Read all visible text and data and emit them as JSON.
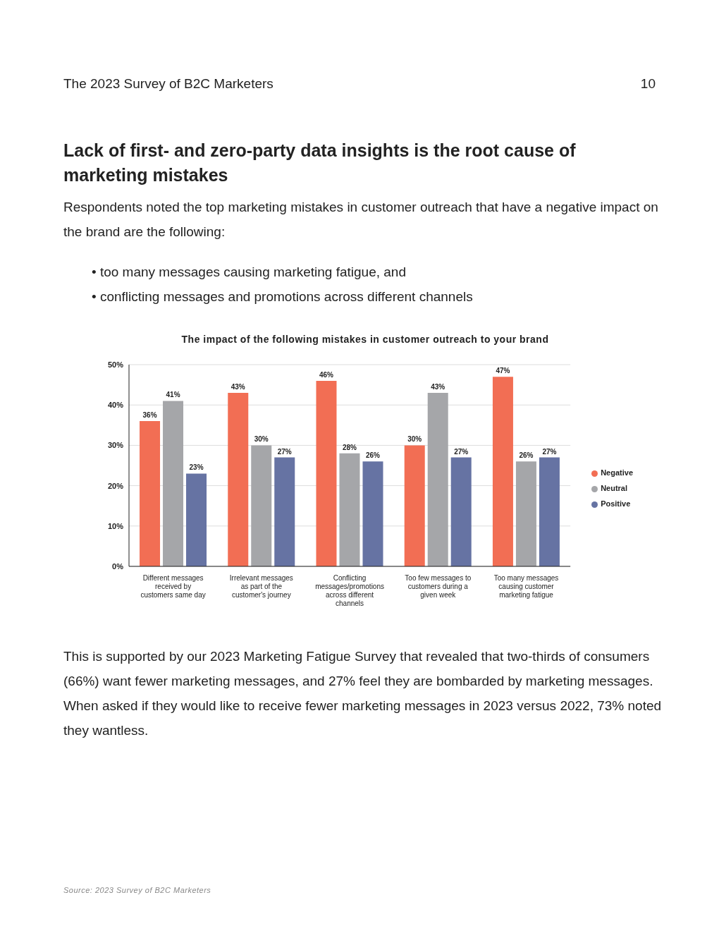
{
  "chart_data": {
    "type": "bar",
    "title": "The impact of the following mistakes in customer outreach to your brand",
    "categories": [
      "Different messages received by customers same day",
      "Irrelevant messages as part of the customer's journey",
      "Conflicting messages/promotions across different channels",
      "Too few messages to customers during a given week",
      "Too many messages causing customer marketing fatigue"
    ],
    "series": [
      {
        "name": "Negative",
        "color": "#f26e54",
        "values": [
          36,
          43,
          46,
          30,
          47
        ]
      },
      {
        "name": "Neutral",
        "color": "#a5a6a9",
        "values": [
          41,
          30,
          28,
          43,
          26
        ]
      },
      {
        "name": "Positive",
        "color": "#6673a3",
        "values": [
          23,
          27,
          26,
          27,
          27
        ]
      }
    ],
    "ylim": [
      0,
      50
    ],
    "yticks": [
      {
        "value": 0,
        "label": "0%"
      },
      {
        "value": 10,
        "label": "10%"
      },
      {
        "value": 20,
        "label": "20%"
      },
      {
        "value": 30,
        "label": "30%"
      },
      {
        "value": 40,
        "label": "40%"
      },
      {
        "value": 50,
        "label": "50%"
      }
    ],
    "value_labels": [
      [
        "36%",
        "43%",
        "46%",
        "30%",
        "47%"
      ],
      [
        "41%",
        "30%",
        "28%",
        "43%",
        "26%"
      ],
      [
        "23%",
        "27%",
        "26%",
        "27%",
        "27%"
      ]
    ],
    "grid": "y",
    "legend": "right",
    "annotations": [
      "The 2023 Survey of B2C Marketers",
      "10",
      "Lack of first- and zero-party data insights is the root cause of marketing mistakes",
      "Respondents noted the top marketing mistakes in customer outreach that have a negative impact on the brand are the following:",
      "• too many messages causing marketing fatigue, and",
      "• conflicting messages and promotions across different channels",
      "This is supported by our 2023 Marketing Fatigue Survey that revealed that two-thirds of consumers (66%) want fewer marketing messages, and 27% feel they are bombarded by marketing messages. When asked if they would like to receive fewer marketing messages in 2023 versus 2022, 73% noted they wantless.",
      "Source: 2023 Survey of B2C Marketers"
    ]
  }
}
